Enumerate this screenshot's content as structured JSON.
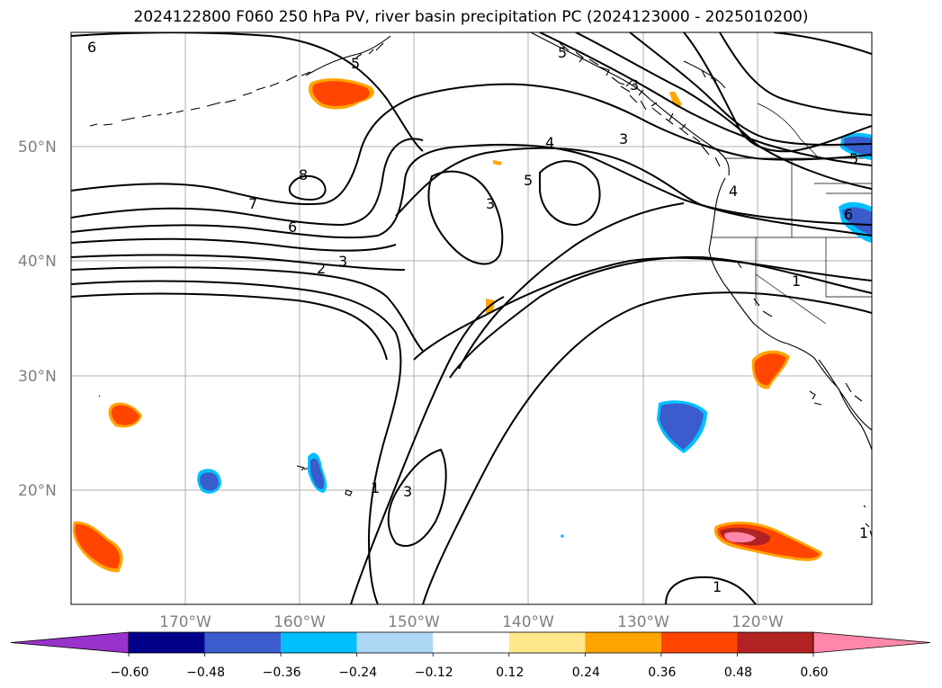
{
  "title": "2024122800 F060 250 hPa PV, river basin precipitation PC (2024123000 - 2025010200)",
  "map": {
    "lon_range": [
      -180,
      -110
    ],
    "lat_range": [
      10,
      60
    ],
    "lat_gridlines": [
      20,
      30,
      40,
      50
    ],
    "lon_gridlines": [
      -170,
      -160,
      -150,
      -140,
      -130,
      -120
    ],
    "lat_labels": [
      "20°N",
      "30°N",
      "40°N",
      "50°N"
    ],
    "lon_labels": [
      "170°W",
      "160°W",
      "150°W",
      "140°W",
      "130°W",
      "120°W"
    ],
    "grid": true,
    "pv_contour_labels": [
      "6",
      "5",
      "5",
      "3",
      "4",
      "3",
      "8",
      "7",
      "6",
      "5",
      "3",
      "4",
      "3",
      "2",
      "1",
      "1",
      "3",
      "1",
      "5",
      "6",
      "1"
    ]
  },
  "colorbar": {
    "colors": [
      "#9932cc",
      "#00008b",
      "#3a5ccc",
      "#00bfff",
      "#add8f5",
      "#ffffff",
      "#ffe98c",
      "#ffa500",
      "#ff4500",
      "#b22222",
      "#ff88aa"
    ],
    "tick_labels": [
      "−0.60",
      "−0.48",
      "−0.36",
      "−0.24",
      "−0.12",
      "0.12",
      "0.24",
      "0.36",
      "0.48",
      "0.60"
    ],
    "extend": "both"
  }
}
